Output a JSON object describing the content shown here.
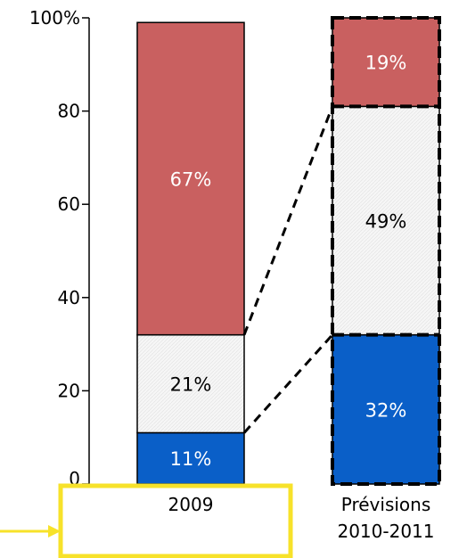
{
  "chart_data": {
    "type": "bar",
    "stacked": true,
    "categories": [
      "2009",
      "Prévisions 2010-2011"
    ],
    "category_lines": [
      [
        "2009"
      ],
      [
        "Prévisions",
        "2010-2011"
      ]
    ],
    "series": [
      {
        "values": [
          11,
          32
        ],
        "labels": [
          "11%",
          "32%"
        ],
        "color": "#0a5fc8",
        "label_color": "#ffffff"
      },
      {
        "values": [
          21,
          49
        ],
        "labels": [
          "21%",
          "49%"
        ],
        "color": "#f5f5f5",
        "label_color": "#000000"
      },
      {
        "values": [
          67,
          19
        ],
        "labels": [
          "67%",
          "19%"
        ],
        "color": "#c96060",
        "label_color": "#ffffff"
      }
    ],
    "ylim": [
      0,
      100
    ],
    "yticks": [
      {
        "value": 0,
        "label": "0"
      },
      {
        "value": 20,
        "label": "20"
      },
      {
        "value": 40,
        "label": "40"
      },
      {
        "value": 60,
        "label": "60"
      },
      {
        "value": 80,
        "label": "80"
      },
      {
        "value": 100,
        "label": "100%"
      }
    ],
    "highlight_color": "#f7e22a",
    "legend": "none",
    "grid": false
  }
}
